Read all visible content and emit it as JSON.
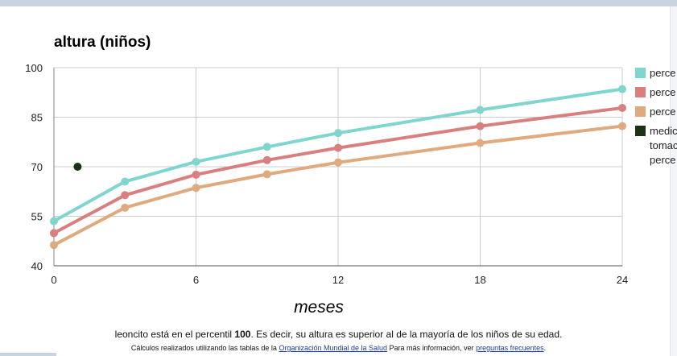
{
  "page": {
    "caption_prefix": "leoncito está en el percentil ",
    "caption_percentile": "100",
    "caption_suffix": ". Es decir, su altura es superior al de la mayoría de los niños de su edad.",
    "note_prefix": "Cálculos realizados utilizando las tablas de la ",
    "note_link_who": "Organización Mundial de la Salud",
    "note_mid": " Para más información, ver ",
    "note_link_faq": "preguntas frecuentes",
    "note_suffix": "."
  },
  "chart_data": {
    "type": "line",
    "title": "altura (niños)",
    "xlabel": "meses",
    "ylabel": "",
    "xlim": [
      0,
      24
    ],
    "ylim": [
      40,
      100
    ],
    "xticks": [
      0,
      6,
      12,
      18,
      24
    ],
    "yticks": [
      40,
      55,
      70,
      85,
      100
    ],
    "grid": true,
    "legend_position": "right",
    "x": [
      0,
      3,
      6,
      9,
      12,
      18,
      24
    ],
    "series": [
      {
        "name": "perce",
        "color": "#7ed6cf",
        "values": [
          53.5,
          65.5,
          71.5,
          76.0,
          80.2,
          87.2,
          93.5
        ]
      },
      {
        "name": "perce",
        "color": "#d97f7f",
        "values": [
          49.9,
          61.4,
          67.6,
          72.0,
          75.7,
          82.3,
          87.8
        ]
      },
      {
        "name": "perce",
        "color": "#deaa7e",
        "values": [
          46.3,
          57.6,
          63.6,
          67.7,
          71.3,
          77.2,
          82.3
        ]
      }
    ],
    "measurements": {
      "name": "medic\ntomac\nperce",
      "color": "#1a3314",
      "points": [
        {
          "x": 1,
          "y": 70
        }
      ]
    }
  }
}
